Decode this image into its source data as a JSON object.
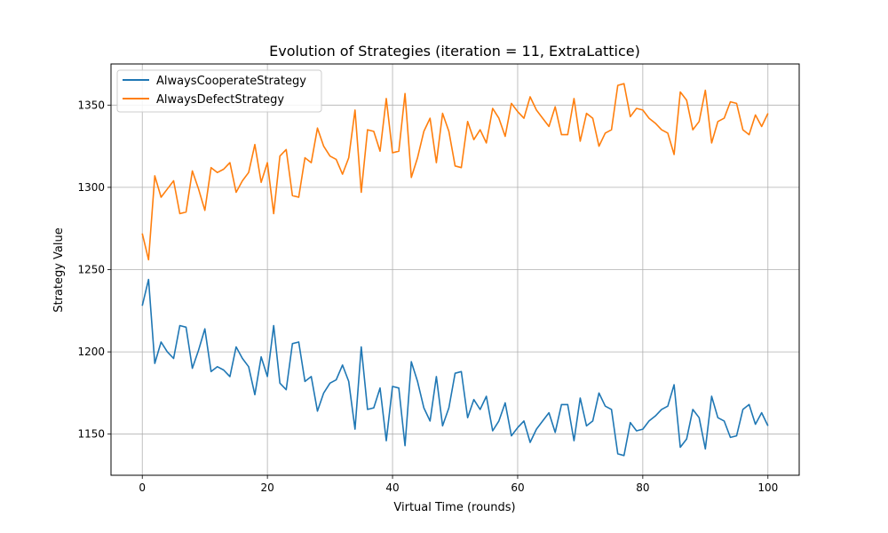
{
  "chart_data": {
    "type": "line",
    "title": "Evolution of Strategies (iteration = 11, ExtraLattice)",
    "xlabel": "Virtual Time (rounds)",
    "ylabel": "Strategy Value",
    "xlim": [
      -5,
      105
    ],
    "ylim": [
      1125,
      1375
    ],
    "xticks": [
      0,
      20,
      40,
      60,
      80,
      100
    ],
    "yticks": [
      1150,
      1200,
      1250,
      1300,
      1350
    ],
    "grid": true,
    "legend_position": "top-left",
    "x": [
      0,
      1,
      2,
      3,
      4,
      5,
      6,
      7,
      8,
      9,
      10,
      11,
      12,
      13,
      14,
      15,
      16,
      17,
      18,
      19,
      20,
      21,
      22,
      23,
      24,
      25,
      26,
      27,
      28,
      29,
      30,
      31,
      32,
      33,
      34,
      35,
      36,
      37,
      38,
      39,
      40,
      41,
      42,
      43,
      44,
      45,
      46,
      47,
      48,
      49,
      50,
      51,
      52,
      53,
      54,
      55,
      56,
      57,
      58,
      59,
      60,
      61,
      62,
      63,
      64,
      65,
      66,
      67,
      68,
      69,
      70,
      71,
      72,
      73,
      74,
      75,
      76,
      77,
      78,
      79,
      80,
      81,
      82,
      83,
      84,
      85,
      86,
      87,
      88,
      89,
      90,
      91,
      92,
      93,
      94,
      95,
      96,
      97,
      98,
      99,
      100
    ],
    "series": [
      {
        "name": "AlwaysCooperateStrategy",
        "color": "#1f77b4",
        "values": [
          1228,
          1244,
          1193,
          1206,
          1200,
          1196,
          1216,
          1215,
          1190,
          1201,
          1214,
          1188,
          1191,
          1189,
          1185,
          1203,
          1196,
          1191,
          1174,
          1197,
          1185,
          1216,
          1181,
          1177,
          1205,
          1206,
          1182,
          1185,
          1164,
          1175,
          1181,
          1183,
          1192,
          1182,
          1153,
          1203,
          1165,
          1166,
          1178,
          1146,
          1179,
          1178,
          1143,
          1194,
          1182,
          1166,
          1158,
          1185,
          1155,
          1166,
          1187,
          1188,
          1160,
          1171,
          1165,
          1173,
          1152,
          1158,
          1169,
          1149,
          1154,
          1158,
          1145,
          1153,
          1158,
          1163,
          1151,
          1168,
          1168,
          1146,
          1172,
          1155,
          1158,
          1175,
          1167,
          1165,
          1138,
          1137,
          1157,
          1152,
          1153,
          1158,
          1161,
          1165,
          1167,
          1180,
          1142,
          1147,
          1165,
          1160,
          1141,
          1173,
          1160,
          1158,
          1148,
          1149,
          1165,
          1168,
          1156,
          1163,
          1155
        ]
      },
      {
        "name": "AlwaysDefectStrategy",
        "color": "#ff7f0e",
        "values": [
          1272,
          1256,
          1307,
          1294,
          1299,
          1304,
          1284,
          1285,
          1310,
          1299,
          1286,
          1312,
          1309,
          1311,
          1315,
          1297,
          1304,
          1309,
          1326,
          1303,
          1315,
          1284,
          1319,
          1323,
          1295,
          1294,
          1318,
          1315,
          1336,
          1325,
          1319,
          1317,
          1308,
          1318,
          1347,
          1297,
          1335,
          1334,
          1322,
          1354,
          1321,
          1322,
          1357,
          1306,
          1318,
          1334,
          1342,
          1315,
          1345,
          1334,
          1313,
          1312,
          1340,
          1329,
          1335,
          1327,
          1348,
          1342,
          1331,
          1351,
          1346,
          1342,
          1355,
          1347,
          1342,
          1337,
          1349,
          1332,
          1332,
          1354,
          1328,
          1345,
          1342,
          1325,
          1333,
          1335,
          1362,
          1363,
          1343,
          1348,
          1347,
          1342,
          1339,
          1335,
          1333,
          1320,
          1358,
          1353,
          1335,
          1340,
          1359,
          1327,
          1340,
          1342,
          1352,
          1351,
          1335,
          1332,
          1344,
          1337,
          1345
        ]
      }
    ]
  }
}
